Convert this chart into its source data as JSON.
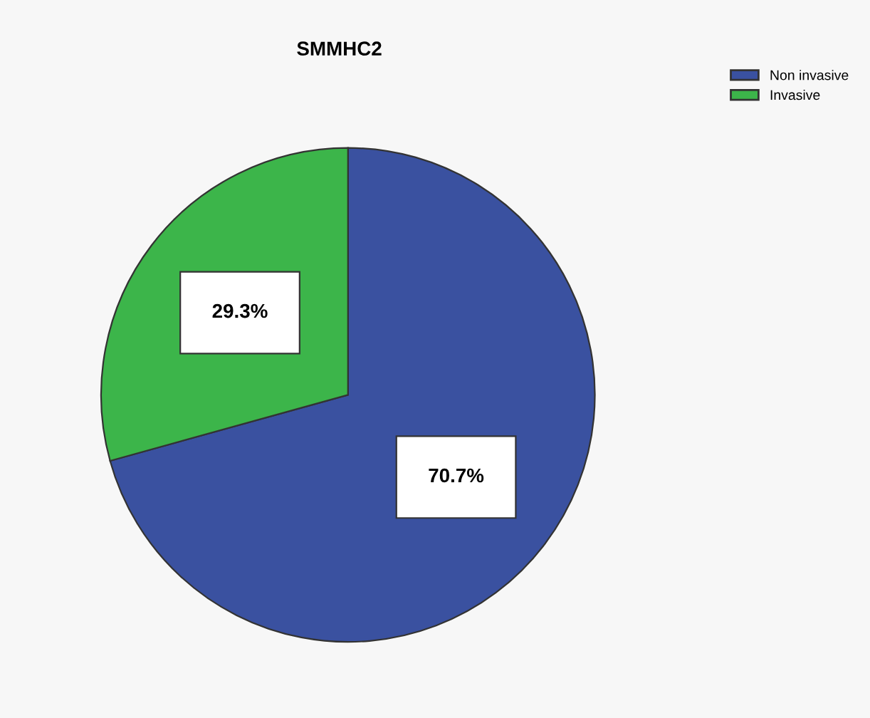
{
  "chart_data": {
    "type": "pie",
    "title": "SMMHC2",
    "categories": [
      "Non invasive",
      "Invasive"
    ],
    "values": [
      70.7,
      29.3
    ],
    "colors": [
      "#3a51a0",
      "#3cb54a"
    ],
    "value_labels": [
      "70.7%",
      "29.3%"
    ],
    "legend": "top right"
  }
}
